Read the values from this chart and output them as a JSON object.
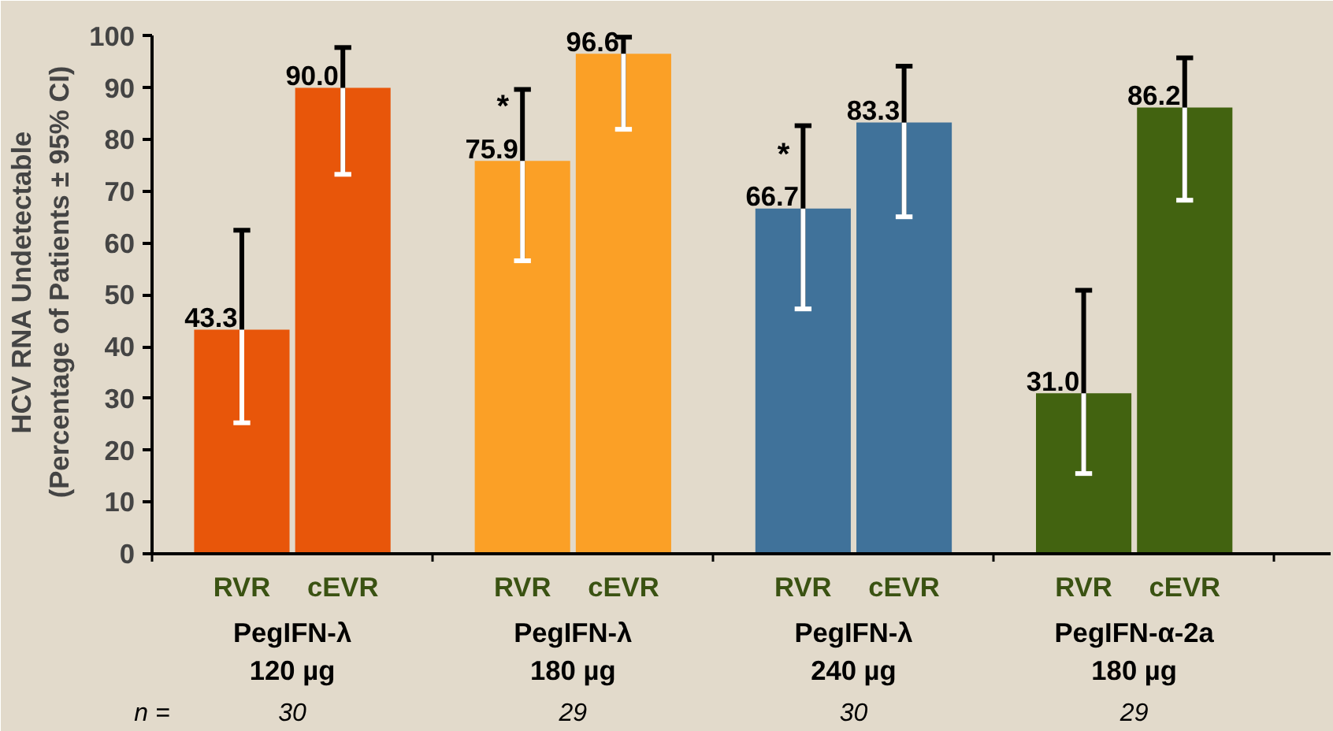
{
  "chart_data": {
    "type": "bar",
    "ylabel": "HCV RNA Undetectable\n(Percentage of Patients ± 95% CI)",
    "categories": [
      "RVR",
      "cEVR",
      "RVR",
      "cEVR",
      "RVR",
      "cEVR",
      "RVR",
      "cEVR"
    ],
    "values": [
      43.3,
      90.0,
      75.9,
      96.6,
      66.7,
      83.3,
      31.0,
      86.2
    ],
    "value_labels": [
      "43.3",
      "90.0",
      "75.9",
      "96.6",
      "66.7",
      "83.3",
      "31.0",
      "86.2"
    ],
    "colors": [
      "#e8560a",
      "#e8560a",
      "#fba026",
      "#fba026",
      "#40729a",
      "#40729a",
      "#426310",
      "#426310"
    ],
    "errors": [
      [
        25.3,
        62.5
      ],
      [
        73.3,
        97.8
      ],
      [
        56.6,
        89.7
      ],
      [
        82.0,
        99.8
      ],
      [
        47.3,
        82.7
      ],
      [
        65.1,
        94.2
      ],
      [
        15.5,
        50.9
      ],
      [
        68.3,
        95.8
      ]
    ],
    "ylim": [
      0,
      100
    ],
    "yticks": [
      0,
      10,
      20,
      30,
      40,
      50,
      60,
      70,
      80,
      90,
      100
    ],
    "grid": false,
    "annotations": [
      "PegIFN-λ\n120 µg",
      "PegIFN-λ\n180 µg",
      "PegIFN-λ\n240 µg",
      "PegIFN-α-2a\n180 µg",
      "n =",
      "30",
      "29",
      "30",
      "29",
      {
        "text": "*",
        "y": 75.9
      },
      {
        "text": "*",
        "y": 66.7
      }
    ]
  }
}
